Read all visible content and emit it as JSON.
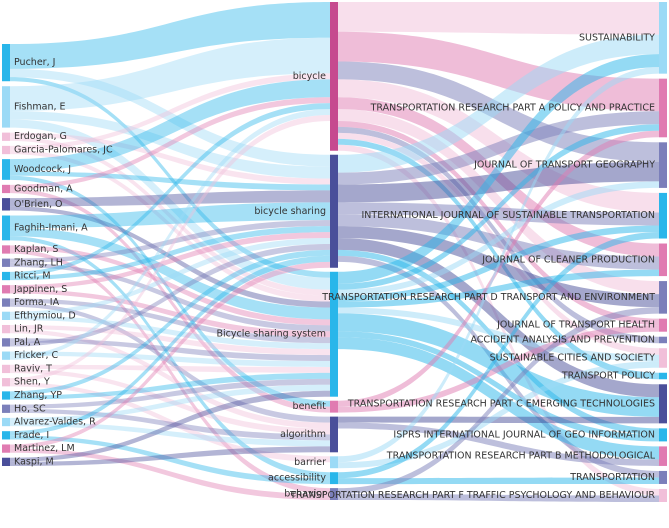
{
  "colors": {
    "blue": "#29b6ea",
    "lightblue": "#9bdaf6",
    "pink": "#e07bb1",
    "lightpink": "#f1bfd9",
    "purple": "#7b7fba",
    "navy": "#4a4f9a",
    "magenta": "#c64a8f"
  },
  "left_nodes": [
    {
      "id": "a0",
      "label": "Pucher, J",
      "color": "blue"
    },
    {
      "id": "a1",
      "label": "Fishman, E",
      "color": "lightblue"
    },
    {
      "id": "a2",
      "label": "Erdogan, G",
      "color": "lightpink"
    },
    {
      "id": "a3",
      "label": "Garcia-Palomares, JC",
      "color": "lightpink"
    },
    {
      "id": "a4",
      "label": "Woodcock, J",
      "color": "blue"
    },
    {
      "id": "a5",
      "label": "Goodman, A",
      "color": "pink"
    },
    {
      "id": "a6",
      "label": "O'Brien, O",
      "color": "navy"
    },
    {
      "id": "a7",
      "label": "Faghih-Imani, A",
      "color": "blue"
    },
    {
      "id": "a8",
      "label": "Kaplan, S",
      "color": "pink"
    },
    {
      "id": "a9",
      "label": "Zhang, LH",
      "color": "purple"
    },
    {
      "id": "a10",
      "label": "Ricci, M",
      "color": "blue"
    },
    {
      "id": "a11",
      "label": "Jappinen, S",
      "color": "pink"
    },
    {
      "id": "a12",
      "label": "Forma, IA",
      "color": "purple"
    },
    {
      "id": "a13",
      "label": "Efthymiou, D",
      "color": "lightblue"
    },
    {
      "id": "a14",
      "label": "Lin, JR",
      "color": "lightpink"
    },
    {
      "id": "a15",
      "label": "Pal, A",
      "color": "purple"
    },
    {
      "id": "a16",
      "label": "Fricker, C",
      "color": "lightblue"
    },
    {
      "id": "a17",
      "label": "Raviv, T",
      "color": "lightpink"
    },
    {
      "id": "a18",
      "label": "Shen, Y",
      "color": "lightpink"
    },
    {
      "id": "a19",
      "label": "Zhang, YP",
      "color": "blue"
    },
    {
      "id": "a20",
      "label": "Ho, SC",
      "color": "purple"
    },
    {
      "id": "a21",
      "label": "Alvarez-Valdes, R",
      "color": "lightblue"
    },
    {
      "id": "a22",
      "label": "Frade, I",
      "color": "blue"
    },
    {
      "id": "a23",
      "label": "Martinez, LM",
      "color": "pink"
    },
    {
      "id": "a24",
      "label": "Kaspi, M",
      "color": "navy"
    }
  ],
  "middle_nodes": [
    {
      "id": "m0",
      "label": "bicycle",
      "color": "magenta"
    },
    {
      "id": "m1",
      "label": "bicycle sharing",
      "color": "navy"
    },
    {
      "id": "m2",
      "label": "Bicycle sharing system",
      "color": "blue"
    },
    {
      "id": "m3",
      "label": "benefit",
      "color": "pink"
    },
    {
      "id": "m4",
      "label": "algorithm",
      "color": "navy"
    },
    {
      "id": "m5",
      "label": "barrier",
      "color": "lightblue"
    },
    {
      "id": "m6",
      "label": "accessibility",
      "color": "blue"
    },
    {
      "id": "m7",
      "label": "behavior",
      "color": "purple"
    }
  ],
  "right_nodes": [
    {
      "id": "j0",
      "label": "SUSTAINABILITY",
      "color": "lightblue"
    },
    {
      "id": "j1",
      "label": "TRANSPORTATION RESEARCH PART A POLICY AND PRACTICE",
      "color": "pink"
    },
    {
      "id": "j2",
      "label": "JOURNAL OF TRANSPORT GEOGRAPHY",
      "color": "purple"
    },
    {
      "id": "j3",
      "label": "INTERNATIONAL JOURNAL OF SUSTAINABLE TRANSPORTATION",
      "color": "blue"
    },
    {
      "id": "j4",
      "label": "JOURNAL OF CLEANER PRODUCTION",
      "color": "pink"
    },
    {
      "id": "j5",
      "label": "TRANSPORTATION RESEARCH PART D TRANSPORT AND ENVIRONMENT",
      "color": "purple"
    },
    {
      "id": "j6",
      "label": "JOURNAL OF TRANSPORT HEALTH",
      "color": "pink"
    },
    {
      "id": "j7",
      "label": "ACCIDENT ANALYSIS AND PREVENTION",
      "color": "purple"
    },
    {
      "id": "j8",
      "label": "SUSTAINABLE CITIES AND SOCIETY",
      "color": "lightpink"
    },
    {
      "id": "j9",
      "label": "TRANSPORT POLICY",
      "color": "blue"
    },
    {
      "id": "j10",
      "label": "TRANSPORTATION RESEARCH PART C EMERGING TECHNOLOGIES",
      "color": "navy"
    },
    {
      "id": "j11",
      "label": "ISPRS INTERNATIONAL JOURNAL OF GEO INFORMATION",
      "color": "blue"
    },
    {
      "id": "j12",
      "label": "TRANSPORTATION RESEARCH PART B METHODOLOGICAL",
      "color": "pink"
    },
    {
      "id": "j13",
      "label": "TRANSPORTATION",
      "color": "purple"
    },
    {
      "id": "j14",
      "label": "TRANSPORTATION RESEARCH PART F TRAFFIC PSYCHOLOGY AND BEHAVIOUR",
      "color": "lightpink"
    }
  ],
  "flows_left": [
    [
      "a0",
      "m0",
      6,
      "blue"
    ],
    [
      "a0",
      "m1",
      2,
      "lightblue"
    ],
    [
      "a0",
      "m2",
      1,
      "blue"
    ],
    [
      "a1",
      "m0",
      6,
      "lightblue"
    ],
    [
      "a1",
      "m1",
      2,
      "lightblue"
    ],
    [
      "a1",
      "m2",
      2,
      "lightblue"
    ],
    [
      "a2",
      "m1",
      1,
      "lightpink"
    ],
    [
      "a2",
      "m2",
      1,
      "lightpink"
    ],
    [
      "a3",
      "m0",
      1,
      "lightpink"
    ],
    [
      "a3",
      "m2",
      1,
      "lightpink"
    ],
    [
      "a4",
      "m0",
      3,
      "blue"
    ],
    [
      "a4",
      "m1",
      1,
      "blue"
    ],
    [
      "a4",
      "m3",
      1,
      "blue"
    ],
    [
      "a5",
      "m0",
      1,
      "pink"
    ],
    [
      "a5",
      "m3",
      1,
      "pink"
    ],
    [
      "a6",
      "m1",
      2,
      "navy"
    ],
    [
      "a6",
      "m2",
      1,
      "navy"
    ],
    [
      "a7",
      "m1",
      3,
      "blue"
    ],
    [
      "a7",
      "m2",
      2,
      "blue"
    ],
    [
      "a7",
      "m6",
      1,
      "blue"
    ],
    [
      "a8",
      "m2",
      1,
      "pink"
    ],
    [
      "a8",
      "m7",
      1,
      "pink"
    ],
    [
      "a9",
      "m1",
      1,
      "purple"
    ],
    [
      "a9",
      "m2",
      1,
      "purple"
    ],
    [
      "a10",
      "m0",
      1,
      "blue"
    ],
    [
      "a10",
      "m1",
      1,
      "blue"
    ],
    [
      "a11",
      "m1",
      1,
      "pink"
    ],
    [
      "a11",
      "m2",
      1,
      "pink"
    ],
    [
      "a12",
      "m2",
      1,
      "purple"
    ],
    [
      "a12",
      "m4",
      1,
      "purple"
    ],
    [
      "a13",
      "m1",
      1,
      "lightblue"
    ],
    [
      "a13",
      "m2",
      1,
      "lightblue"
    ],
    [
      "a14",
      "m2",
      1,
      "lightpink"
    ],
    [
      "a14",
      "m4",
      1,
      "lightpink"
    ],
    [
      "a15",
      "m2",
      1,
      "purple"
    ],
    [
      "a15",
      "m1",
      1,
      "purple"
    ],
    [
      "a16",
      "m2",
      1,
      "lightblue"
    ],
    [
      "a16",
      "m0",
      1,
      "lightblue"
    ],
    [
      "a17",
      "m2",
      1,
      "lightpink"
    ],
    [
      "a17",
      "m4",
      1,
      "lightpink"
    ],
    [
      "a18",
      "m0",
      1,
      "lightpink"
    ],
    [
      "a18",
      "m5",
      1,
      "lightpink"
    ],
    [
      "a19",
      "m1",
      1,
      "blue"
    ],
    [
      "a19",
      "m2",
      1,
      "blue"
    ],
    [
      "a20",
      "m2",
      1,
      "purple"
    ],
    [
      "a20",
      "m4",
      1,
      "purple"
    ],
    [
      "a21",
      "m2",
      1,
      "lightblue"
    ],
    [
      "a21",
      "m4",
      1,
      "lightblue"
    ],
    [
      "a22",
      "m1",
      1,
      "blue"
    ],
    [
      "a22",
      "m6",
      1,
      "blue"
    ],
    [
      "a23",
      "m1",
      1,
      "pink"
    ],
    [
      "a23",
      "m7",
      1,
      "pink"
    ],
    [
      "a24",
      "m2",
      1,
      "navy"
    ],
    [
      "a24",
      "m4",
      1,
      "navy"
    ]
  ],
  "flows_right": [
    [
      "m0",
      "j0",
      5,
      "lightpink"
    ],
    [
      "m0",
      "j1",
      5,
      "pink"
    ],
    [
      "m0",
      "j2",
      3,
      "purple"
    ],
    [
      "m0",
      "j3",
      3,
      "lightpink"
    ],
    [
      "m0",
      "j4",
      2,
      "pink"
    ],
    [
      "m0",
      "j5",
      2,
      "lightpink"
    ],
    [
      "m0",
      "j6",
      1,
      "pink"
    ],
    [
      "m0",
      "j7",
      1,
      "purple"
    ],
    [
      "m0",
      "j8",
      1,
      "lightpink"
    ],
    [
      "m0",
      "j9",
      1,
      "blue"
    ],
    [
      "m0",
      "j14",
      1,
      "lightpink"
    ],
    [
      "m1",
      "j0",
      3,
      "lightblue"
    ],
    [
      "m1",
      "j1",
      2,
      "purple"
    ],
    [
      "m1",
      "j2",
      3,
      "navy"
    ],
    [
      "m1",
      "j3",
      2,
      "purple"
    ],
    [
      "m1",
      "j4",
      2,
      "purple"
    ],
    [
      "m1",
      "j5",
      2,
      "navy"
    ],
    [
      "m1",
      "j10",
      2,
      "navy"
    ],
    [
      "m1",
      "j11",
      1,
      "blue"
    ],
    [
      "m1",
      "j13",
      1,
      "purple"
    ],
    [
      "m2",
      "j0",
      2,
      "blue"
    ],
    [
      "m2",
      "j1",
      1,
      "blue"
    ],
    [
      "m2",
      "j2",
      1,
      "lightblue"
    ],
    [
      "m2",
      "j3",
      1,
      "blue"
    ],
    [
      "m2",
      "j4",
      1,
      "blue"
    ],
    [
      "m2",
      "j8",
      1,
      "lightblue"
    ],
    [
      "m2",
      "j10",
      3,
      "blue"
    ],
    [
      "m2",
      "j11",
      1,
      "blue"
    ],
    [
      "m2",
      "j12",
      2,
      "blue"
    ],
    [
      "m3",
      "j1",
      1,
      "pink"
    ],
    [
      "m3",
      "j6",
      1,
      "pink"
    ],
    [
      "m4",
      "j10",
      1,
      "navy"
    ],
    [
      "m4",
      "j12",
      1,
      "purple"
    ],
    [
      "m5",
      "j0",
      1,
      "lightblue"
    ],
    [
      "m5",
      "j8",
      1,
      "lightblue"
    ],
    [
      "m6",
      "j3",
      1,
      "blue"
    ],
    [
      "m6",
      "j13",
      1,
      "blue"
    ],
    [
      "m7",
      "j5",
      1,
      "purple"
    ],
    [
      "m7",
      "j14",
      1,
      "purple"
    ]
  ]
}
